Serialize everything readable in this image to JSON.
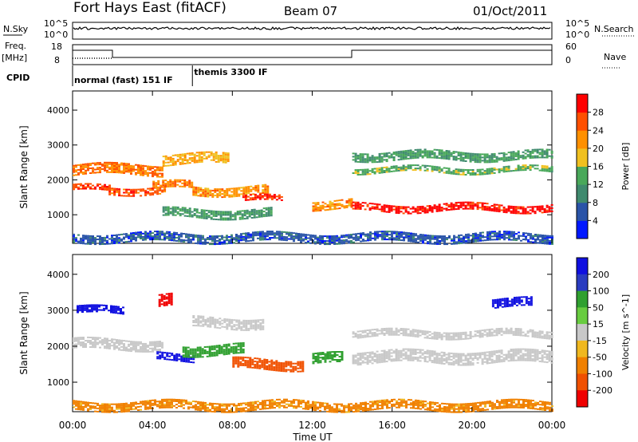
{
  "header": {
    "station": "Fort Hays East (fitACF)",
    "beam": "Beam 07",
    "date": "01/Oct/2011"
  },
  "strip_labels": {
    "nsky": "N.Sky",
    "nsky_ticks": [
      "10^5",
      "10^0"
    ],
    "nsearch": "N.Search",
    "nsearch_ticks": [
      "10^5",
      "10^0"
    ],
    "freq": "Freq.",
    "freq_unit": "[MHz]",
    "freq_ticks": [
      "18",
      "8"
    ],
    "nave": "Nave",
    "nave_ticks": [
      "60",
      "0"
    ],
    "cpid": "CPID"
  },
  "cpid_segments": [
    {
      "label": "normal (fast) 151 IF",
      "start_hour": 0,
      "end_hour": 6
    },
    {
      "label": "themis 3300 IF",
      "start_hour": 6,
      "end_hour": 24
    }
  ],
  "x_axis": {
    "label": "Time UT",
    "ticks": [
      "00:00",
      "04:00",
      "08:00",
      "12:00",
      "16:00",
      "20:00",
      "00:00"
    ]
  },
  "colors": {
    "power": [
      "#0018ff",
      "#2a54a8",
      "#3f8a6e",
      "#49a85a",
      "#f0c020",
      "#ff9000",
      "#ff5000",
      "#ff0000"
    ],
    "velocity": [
      "#1010e0",
      "#2a3cc0",
      "#30a030",
      "#68cc40",
      "#c8c8c8",
      "#f0b820",
      "#f08000",
      "#f05000",
      "#f00000"
    ]
  },
  "chart_data": [
    {
      "type": "heatmap",
      "quantity": "Power",
      "ylabel": "Slant Range [km]",
      "x_range_hours": [
        0,
        24
      ],
      "ylim": [
        180,
        4550
      ],
      "y_ticks": [
        "1000",
        "2000",
        "3000",
        "4000"
      ],
      "colorbar_label": "Power [dB]",
      "colorbar_ticks": [
        "4",
        "8",
        "12",
        "16",
        "20",
        "24",
        "28"
      ],
      "colorbar_range": [
        0,
        32
      ],
      "features": [
        {
          "hour_start": 0.0,
          "hour_end": 1.8,
          "range_km": 1750,
          "width_km": 180,
          "value": 28
        },
        {
          "hour_start": 1.8,
          "hour_end": 4.6,
          "range_km": 1700,
          "width_km": 220,
          "value": 26
        },
        {
          "hour_start": 4.0,
          "hour_end": 6.0,
          "range_km": 1850,
          "width_km": 200,
          "value": 24
        },
        {
          "hour_start": 6.0,
          "hour_end": 9.8,
          "range_km": 1700,
          "width_km": 250,
          "value": 22
        },
        {
          "hour_start": 8.5,
          "hour_end": 10.5,
          "range_km": 1450,
          "width_km": 180,
          "value": 28
        },
        {
          "hour_start": 12.0,
          "hour_end": 14.0,
          "range_km": 1300,
          "width_km": 250,
          "value": 22
        },
        {
          "hour_start": 14.0,
          "hour_end": 24.0,
          "range_km": 1200,
          "width_km": 220,
          "value": 30
        },
        {
          "hour_start": 0.0,
          "hour_end": 4.5,
          "range_km": 2300,
          "width_km": 300,
          "value": 24
        },
        {
          "hour_start": 4.5,
          "hour_end": 7.8,
          "range_km": 2600,
          "width_km": 300,
          "value": 20
        },
        {
          "hour_start": 14.0,
          "hour_end": 24.0,
          "range_km": 2700,
          "width_km": 250,
          "value": 12
        },
        {
          "hour_start": 14.0,
          "hour_end": 24.0,
          "range_km": 2300,
          "width_km": 150,
          "value": 14
        },
        {
          "hour_start": 4.5,
          "hour_end": 10.0,
          "range_km": 1050,
          "width_km": 250,
          "value": 12
        },
        {
          "hour_start": 0.0,
          "hour_end": 24.0,
          "range_km": 350,
          "width_km": 250,
          "value": 6
        }
      ]
    },
    {
      "type": "heatmap",
      "quantity": "Velocity",
      "ylabel": "Slant Range [km]",
      "x_range_hours": [
        0,
        24
      ],
      "ylim": [
        180,
        4550
      ],
      "y_ticks": [
        "1000",
        "2000",
        "3000",
        "4000"
      ],
      "colorbar_label": "Velocity [m s^-1]",
      "colorbar_ticks": [
        "200",
        "100",
        "50",
        "15",
        "-15",
        "-50",
        "-100",
        "-200"
      ],
      "features": [
        {
          "hour_start": 0.0,
          "hour_end": 4.5,
          "range_km": 2050,
          "width_km": 300,
          "value": 0
        },
        {
          "hour_start": 6.0,
          "hour_end": 9.5,
          "range_km": 2650,
          "width_km": 300,
          "value": 0
        },
        {
          "hour_start": 14.0,
          "hour_end": 24.0,
          "range_km": 1700,
          "width_km": 350,
          "value": 0
        },
        {
          "hour_start": 14.0,
          "hour_end": 24.0,
          "range_km": 2350,
          "width_km": 200,
          "value": 0
        },
        {
          "hour_start": 4.2,
          "hour_end": 6.0,
          "range_km": 1700,
          "width_km": 200,
          "value": 220
        },
        {
          "hour_start": 5.5,
          "hour_end": 8.5,
          "range_km": 1900,
          "width_km": 300,
          "value": 60
        },
        {
          "hour_start": 8.0,
          "hour_end": 11.5,
          "range_km": 1500,
          "width_km": 300,
          "value": -90
        },
        {
          "hour_start": 12.0,
          "hour_end": 13.5,
          "range_km": 1650,
          "width_km": 300,
          "value": 60
        },
        {
          "hour_start": 0.2,
          "hour_end": 2.5,
          "range_km": 3000,
          "width_km": 200,
          "value": 220
        },
        {
          "hour_start": 4.3,
          "hour_end": 5.0,
          "range_km": 3300,
          "width_km": 350,
          "value": -220
        },
        {
          "hour_start": 21.0,
          "hour_end": 23.0,
          "range_km": 3200,
          "width_km": 250,
          "value": 220
        },
        {
          "hour_start": 0.0,
          "hour_end": 24.0,
          "range_km": 350,
          "width_km": 250,
          "value": -40
        }
      ]
    }
  ]
}
